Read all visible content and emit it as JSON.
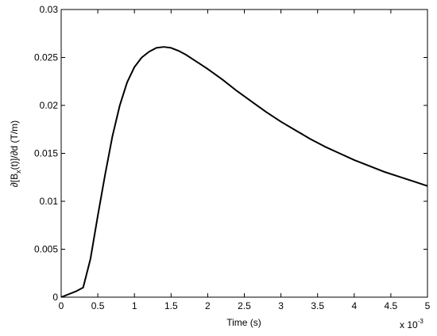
{
  "chart_data": {
    "type": "line",
    "xlabel": "Time (s)",
    "ylabel_parts": [
      "∂[B",
      "x",
      "(t)]/∂d (T/m)"
    ],
    "x_multiplier": {
      "base": "x 10",
      "exponent": "-3"
    },
    "x": [
      0,
      0.1,
      0.2,
      0.3,
      0.4,
      0.5,
      0.6,
      0.7,
      0.8,
      0.9,
      1.0,
      1.1,
      1.2,
      1.3,
      1.4,
      1.5,
      1.6,
      1.7,
      1.8,
      1.9,
      2.0,
      2.2,
      2.4,
      2.6,
      2.8,
      3.0,
      3.2,
      3.4,
      3.6,
      3.8,
      4.0,
      4.2,
      4.4,
      4.6,
      4.8,
      5.0
    ],
    "series": [
      {
        "color": "#000000",
        "values": [
          0,
          0.0003,
          0.0006,
          0.001,
          0.004,
          0.0085,
          0.0128,
          0.0168,
          0.02,
          0.0224,
          0.024,
          0.025,
          0.0256,
          0.026,
          0.0261,
          0.026,
          0.0257,
          0.0253,
          0.0248,
          0.0243,
          0.0238,
          0.0227,
          0.0215,
          0.0204,
          0.0193,
          0.0183,
          0.0174,
          0.0165,
          0.0157,
          0.015,
          0.0143,
          0.0137,
          0.0131,
          0.0126,
          0.0121,
          0.0116
        ]
      }
    ],
    "xlim": [
      0,
      5
    ],
    "xticks": [
      0,
      0.5,
      1,
      1.5,
      2,
      2.5,
      3,
      3.5,
      4,
      4.5,
      5
    ],
    "ylim": [
      0,
      0.03
    ],
    "yticks": [
      0,
      0.005,
      0.01,
      0.015,
      0.02,
      0.025,
      0.03
    ],
    "grid": false
  }
}
